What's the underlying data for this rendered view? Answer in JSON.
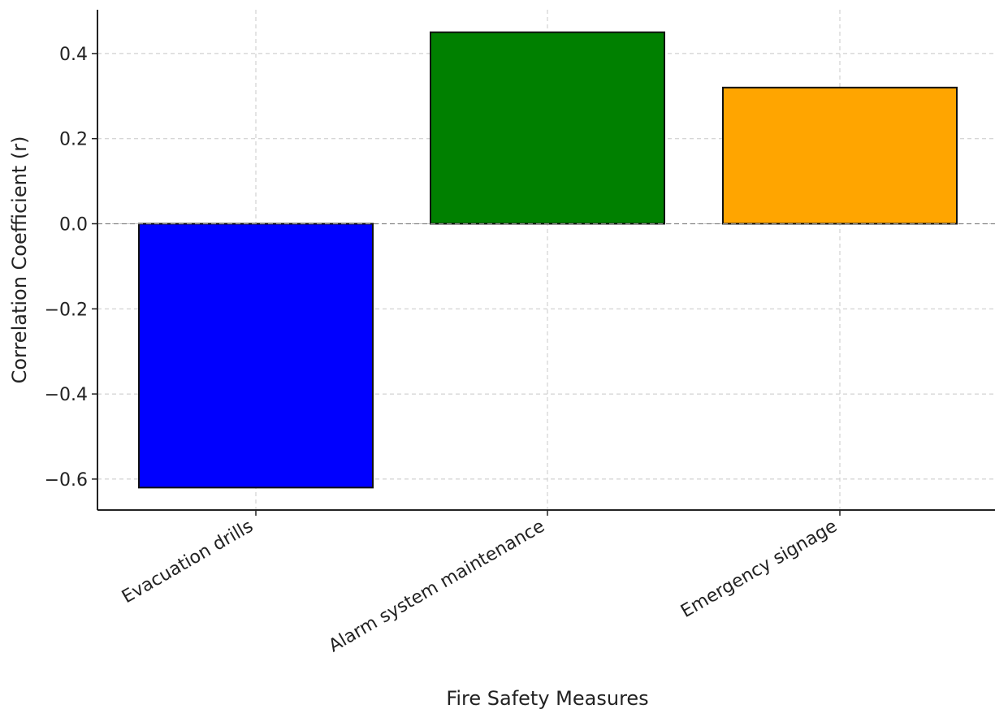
{
  "chart_data": {
    "type": "bar",
    "title": "",
    "xlabel": "Fire Safety Measures",
    "ylabel": "Correlation Coefficient (r)",
    "categories": [
      "Evacuation drills",
      "Alarm system maintenance",
      "Emergency signage"
    ],
    "values": [
      -0.62,
      0.45,
      0.32
    ],
    "colors": [
      "#0000ff",
      "#008000",
      "#ffa500"
    ],
    "ylim": [
      -0.68,
      0.5
    ],
    "yticks": [
      0.4,
      0.2,
      0.0,
      -0.2,
      -0.4,
      -0.6
    ],
    "ytick_labels": [
      "0.4",
      "0.2",
      "0.0",
      "−0.2",
      "−0.4",
      "−0.6"
    ],
    "grid": true,
    "zero_reference_line": true
  }
}
